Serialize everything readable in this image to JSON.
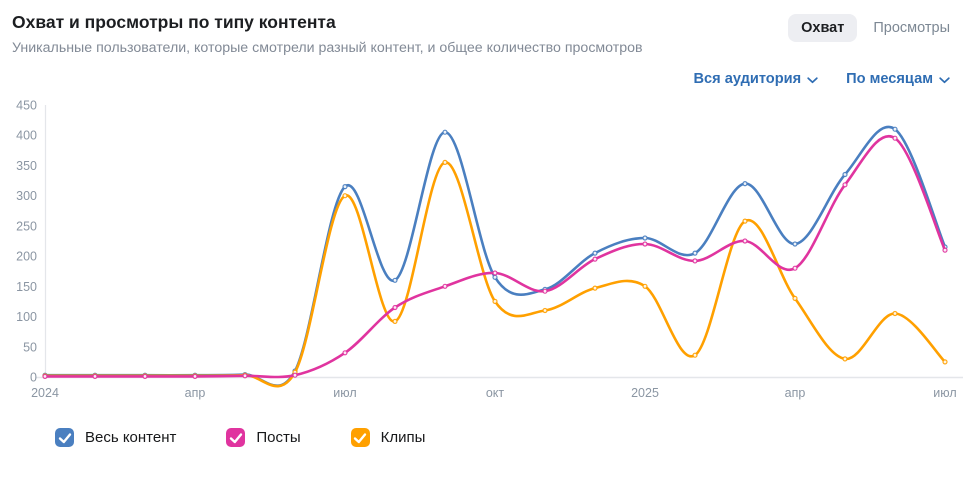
{
  "header": {
    "title": "Охват и просмотры по типу контента",
    "subtitle": "Уникальные пользователи, которые смотрели разный контент, и общее количество просмотров",
    "view_toggle": {
      "selected": "Охват",
      "unselected": "Просмотры"
    },
    "filters": {
      "audience": "Вся аудитория",
      "period": "По месяцам"
    }
  },
  "colors": {
    "link_blue": "#2f6db3",
    "toggle_selected_bg": "#edeef2",
    "axis_line": "#e4e6ea",
    "axis_label": "#8b96a3"
  },
  "chart_data": {
    "type": "line",
    "title": "Охват и просмотры по типу контента",
    "x_unit": "month",
    "x_range": [
      "2024-01",
      "2025-07"
    ],
    "x_ticks": [
      {
        "index": 0,
        "label": "2024"
      },
      {
        "index": 3,
        "label": "апр"
      },
      {
        "index": 6,
        "label": "июл"
      },
      {
        "index": 9,
        "label": "окт"
      },
      {
        "index": 12,
        "label": "2025"
      },
      {
        "index": 15,
        "label": "апр"
      },
      {
        "index": 18,
        "label": "июл"
      }
    ],
    "y_ticks": [
      0,
      50,
      100,
      150,
      200,
      250,
      300,
      350,
      400,
      450
    ],
    "ylim": [
      0,
      450
    ],
    "grid": false,
    "legend_position": "bottom",
    "series": [
      {
        "name": "Весь контент",
        "color": "#4a7fc0",
        "values": [
          3,
          3,
          3,
          3,
          4,
          10,
          315,
          160,
          405,
          165,
          145,
          205,
          230,
          205,
          320,
          220,
          335,
          410,
          215
        ]
      },
      {
        "name": "Посты",
        "color": "#e0349f",
        "values": [
          1,
          1,
          1,
          1,
          2,
          3,
          40,
          115,
          150,
          172,
          142,
          195,
          220,
          192,
          225,
          180,
          318,
          395,
          210
        ]
      },
      {
        "name": "Клипы",
        "color": "#ffa000",
        "values": [
          2,
          2,
          2,
          2,
          3,
          8,
          300,
          92,
          355,
          125,
          110,
          147,
          150,
          36,
          258,
          130,
          30,
          105,
          25
        ]
      }
    ]
  }
}
